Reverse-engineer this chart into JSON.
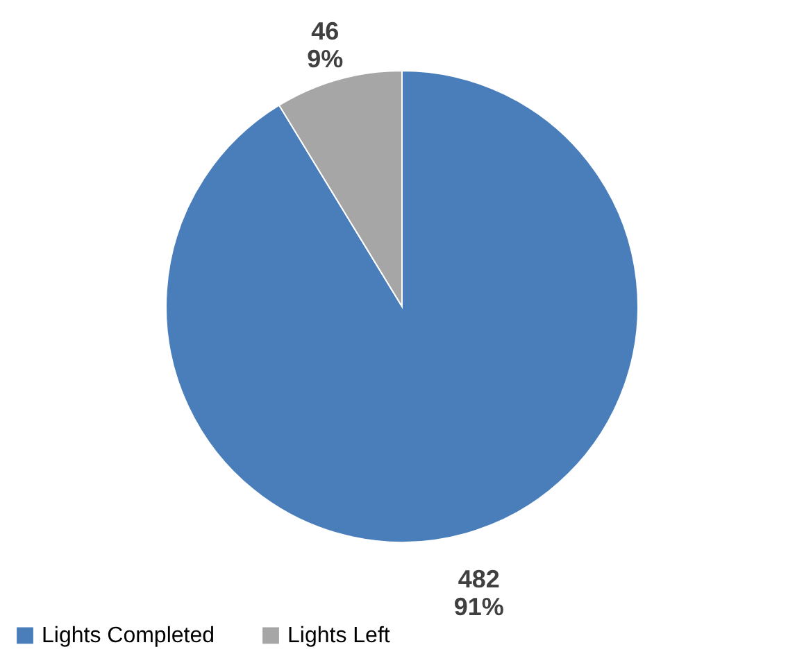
{
  "chart_data": {
    "type": "pie",
    "categories": [
      "Lights Completed",
      "Lights Left"
    ],
    "values": [
      482,
      46
    ],
    "colors": [
      "#4a7ebb",
      "#a6a6a6"
    ],
    "value_labels": [
      "482\n91%",
      "46\n9%"
    ],
    "legend": "bottom"
  }
}
